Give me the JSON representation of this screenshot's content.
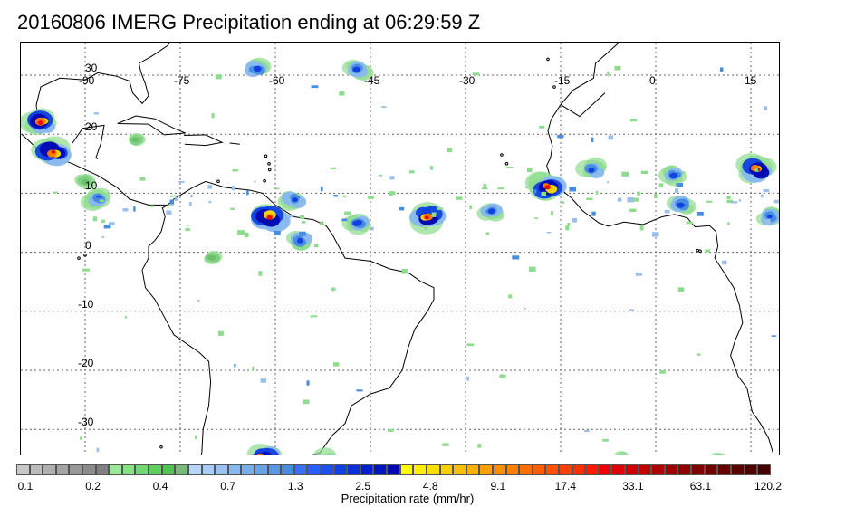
{
  "title": "20160806 IMERG Precipitation ending at 06:29:59 Z",
  "map": {
    "longitude_labels": [
      "-90",
      "-75",
      "-60",
      "-45",
      "-30",
      "-15",
      "0",
      "15"
    ],
    "latitude_labels": [
      "30",
      "20",
      "10",
      "0",
      "-10",
      "-20",
      "-30"
    ],
    "grid": "dotted",
    "coastline_color": "#000000"
  },
  "colorbar": {
    "tick_labels": [
      "0.1",
      "0.2",
      "0.4",
      "0.7",
      "1.3",
      "2.5",
      "4.8",
      "9.1",
      "17.4",
      "33.1",
      "63.1",
      "120.2"
    ],
    "label": "Precipitation rate (mm/hr)",
    "colors": [
      "#c8c8c8",
      "#bcbcbc",
      "#b0b0b0",
      "#a4a4a4",
      "#989898",
      "#8c8c8c",
      "#808080",
      "#9be89b",
      "#86e086",
      "#72d872",
      "#5fcf5f",
      "#4cc64c",
      "#78b878",
      "#b8d4f6",
      "#a8ccf4",
      "#98c2f2",
      "#88b8ef",
      "#78aeec",
      "#68a3e8",
      "#5898e4",
      "#488ce0",
      "#3870f0",
      "#2a60ff",
      "#1e50f0",
      "#1040e0",
      "#0a30d8",
      "#0020d0",
      "#0014c0",
      "#0008b0",
      "#ffff00",
      "#ffef00",
      "#ffdf00",
      "#ffcf00",
      "#ffbf00",
      "#ffaf00",
      "#ff9f00",
      "#ff8f00",
      "#ff7f00",
      "#ff6f00",
      "#ff5f00",
      "#ff4f00",
      "#ff3f00",
      "#ff2f00",
      "#ff1a00",
      "#f00000",
      "#e00000",
      "#d00000",
      "#c00000",
      "#b00000",
      "#a00000",
      "#900000",
      "#800000",
      "#700000",
      "#650000",
      "#5a0000",
      "#500000",
      "#460000"
    ]
  },
  "storms": [
    {
      "lon": -97,
      "lat": 22,
      "level": "heavy"
    },
    {
      "lon": -95,
      "lat": 17,
      "level": "heavy"
    },
    {
      "lon": -88,
      "lat": 9,
      "level": "moderate"
    },
    {
      "lon": -61,
      "lat": 6,
      "level": "heavy"
    },
    {
      "lon": -57,
      "lat": 9,
      "level": "moderate"
    },
    {
      "lon": -56,
      "lat": 2,
      "level": "moderate"
    },
    {
      "lon": -47,
      "lat": 5,
      "level": "moderate"
    },
    {
      "lon": -36,
      "lat": 6,
      "level": "heavy"
    },
    {
      "lon": -26,
      "lat": 7,
      "level": "moderate"
    },
    {
      "lon": -17,
      "lat": 11,
      "level": "heavy"
    },
    {
      "lon": -10,
      "lat": 14,
      "level": "moderate"
    },
    {
      "lon": 3,
      "lat": 13,
      "level": "moderate"
    },
    {
      "lon": 4,
      "lat": 8,
      "level": "moderate"
    },
    {
      "lon": 16,
      "lat": 14,
      "level": "heavy"
    },
    {
      "lon": 18,
      "lat": 6,
      "level": "moderate"
    },
    {
      "lon": -47,
      "lat": 31,
      "level": "moderate"
    },
    {
      "lon": -63,
      "lat": 31,
      "level": "moderate"
    },
    {
      "lon": -62,
      "lat": -35,
      "level": "heavy"
    },
    {
      "lon": -52,
      "lat": -35,
      "level": "moderate"
    },
    {
      "lon": -90,
      "lat": 12,
      "level": "light"
    },
    {
      "lon": -82,
      "lat": 19,
      "level": "light"
    },
    {
      "lon": -70,
      "lat": -1,
      "level": "light"
    },
    {
      "lon": 10,
      "lat": -35,
      "level": "light"
    },
    {
      "lon": -5,
      "lat": -35,
      "level": "light"
    }
  ]
}
